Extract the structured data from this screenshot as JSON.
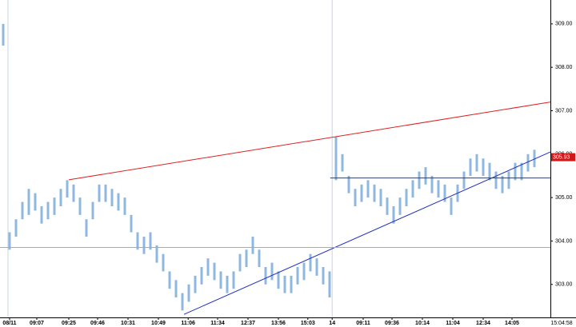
{
  "chart_data": {
    "type": "range-bar",
    "x": [
      0,
      1,
      2,
      3,
      4,
      5,
      6,
      7,
      8,
      9,
      10,
      11,
      12,
      13,
      14,
      15,
      16,
      17,
      18,
      19,
      20,
      21,
      22,
      23,
      24,
      25,
      26,
      27,
      28,
      29,
      30,
      31,
      32,
      33,
      34,
      35,
      36,
      37,
      38,
      39,
      40,
      41,
      42,
      43,
      44,
      45,
      46,
      47,
      48,
      49,
      50,
      51,
      52,
      53,
      54,
      55,
      56,
      57,
      58,
      59,
      60,
      61,
      62,
      63,
      64,
      65,
      66,
      67,
      68,
      69,
      70,
      71,
      72,
      73,
      74,
      75,
      76,
      77,
      78,
      79,
      80,
      81,
      82,
      83
    ],
    "high": [
      309.0,
      304.2,
      304.5,
      304.9,
      305.2,
      305.1,
      304.8,
      304.9,
      305.0,
      305.2,
      305.4,
      305.3,
      305.0,
      304.5,
      304.9,
      305.3,
      305.3,
      305.2,
      305.1,
      305.0,
      304.6,
      304.2,
      304.1,
      304.2,
      303.9,
      303.7,
      303.3,
      303.1,
      302.8,
      303.0,
      303.2,
      303.4,
      303.6,
      303.5,
      303.3,
      303.2,
      303.3,
      303.7,
      303.8,
      304.1,
      303.8,
      303.4,
      303.5,
      303.3,
      303.2,
      303.2,
      303.4,
      303.5,
      303.7,
      303.6,
      303.4,
      303.3,
      306.4,
      306.0,
      305.5,
      305.2,
      305.3,
      305.4,
      305.3,
      305.2,
      305.0,
      304.8,
      305.0,
      305.2,
      305.4,
      305.6,
      305.7,
      305.5,
      305.4,
      305.3,
      305.0,
      305.3,
      305.6,
      305.9,
      306.0,
      305.9,
      305.8,
      305.6,
      305.5,
      305.6,
      305.8,
      305.8,
      306.0,
      306.1
    ],
    "low": [
      308.5,
      303.8,
      304.1,
      304.5,
      304.6,
      304.7,
      304.4,
      304.5,
      304.6,
      304.8,
      305.0,
      304.9,
      304.6,
      304.1,
      304.5,
      304.9,
      304.9,
      304.8,
      304.7,
      304.6,
      304.2,
      303.8,
      303.7,
      303.8,
      303.5,
      303.3,
      302.9,
      302.7,
      302.4,
      302.6,
      302.8,
      303.0,
      303.2,
      303.1,
      302.9,
      302.8,
      302.9,
      303.3,
      303.4,
      303.7,
      303.4,
      303.0,
      303.1,
      302.9,
      302.8,
      302.8,
      303.0,
      303.1,
      303.3,
      303.2,
      303.0,
      302.7,
      305.4,
      305.6,
      305.1,
      304.8,
      304.9,
      305.0,
      304.9,
      304.8,
      304.6,
      304.4,
      304.6,
      304.8,
      305.0,
      305.2,
      305.3,
      305.1,
      305.0,
      304.9,
      304.6,
      304.9,
      305.2,
      305.5,
      305.6,
      305.5,
      305.4,
      305.2,
      305.1,
      305.2,
      305.4,
      305.4,
      305.6,
      305.7
    ],
    "color": "#8fb8e0",
    "xlim": [
      -0.5,
      85.5
    ],
    "ylim": [
      302.24,
      309.55
    ],
    "yticks": [
      {
        "value": 309,
        "label": "309.00"
      },
      {
        "value": 308,
        "label": "308.00"
      },
      {
        "value": 307,
        "label": "307.00"
      },
      {
        "value": 306,
        "label": "306.00"
      },
      {
        "value": 305,
        "label": "305.00"
      },
      {
        "value": 304,
        "label": "304.00"
      },
      {
        "value": 303,
        "label": "303.00"
      }
    ],
    "xticks": [
      {
        "value": 1,
        "label": "08/11"
      },
      {
        "value": 5.25,
        "label": "09:07"
      },
      {
        "value": 10.25,
        "label": "09:25"
      },
      {
        "value": 14.75,
        "label": "09:46"
      },
      {
        "value": 19.5,
        "label": "10:31"
      },
      {
        "value": 24.25,
        "label": "10:49"
      },
      {
        "value": 28.9,
        "label": "11:06"
      },
      {
        "value": 33.5,
        "label": "11:34"
      },
      {
        "value": 38.25,
        "label": "12:37"
      },
      {
        "value": 43,
        "label": "13:56"
      },
      {
        "value": 47.6,
        "label": "15:03"
      },
      {
        "value": 51.4,
        "label": "14"
      },
      {
        "value": 56.25,
        "label": "09:11"
      },
      {
        "value": 60.75,
        "label": "09:36"
      },
      {
        "value": 65.5,
        "label": "10:14"
      },
      {
        "value": 70.25,
        "label": "11:04"
      },
      {
        "value": 75,
        "label": "12:34"
      },
      {
        "value": 79.5,
        "label": "14:05"
      }
    ],
    "session_breaks": [
      0.75,
      51.4
    ],
    "trendlines": [
      {
        "color": "#e02020",
        "x": [
          10.25,
          85.5
        ],
        "y": [
          305.41,
          307.2
        ]
      },
      {
        "color": "#2030c0",
        "x": [
          28.25,
          85.5
        ],
        "y": [
          302.31,
          306.05
        ]
      },
      {
        "color": "#60e060",
        "x": [
          -0.5,
          85.5
        ],
        "y": [
          303.85,
          303.85
        ]
      },
      {
        "color": "#304060",
        "x": [
          51.1,
          85.5
        ],
        "y": [
          305.45,
          305.45
        ]
      }
    ],
    "last_price": {
      "value": 305.93,
      "label": "305.93"
    },
    "time": "15:04:58"
  }
}
